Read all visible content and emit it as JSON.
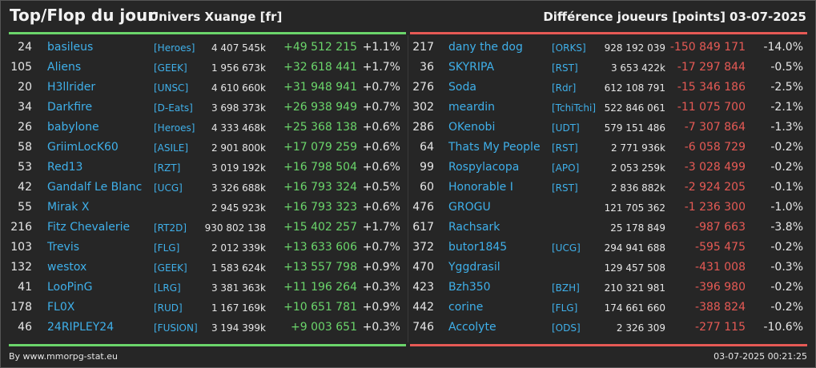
{
  "header": {
    "title": "Top/Flop du jour",
    "universe": "Univers Xuange [fr]",
    "metric": "Différence joueurs [points]",
    "date": "03-07-2025"
  },
  "top": [
    {
      "rank": "24",
      "name": "basileus",
      "alliance": "[Heroes]",
      "points": "4 407 545k",
      "diff": "+49 512 215",
      "pct": "+1.1%"
    },
    {
      "rank": "105",
      "name": "Aliens",
      "alliance": "[GEEK]",
      "points": "1 956 673k",
      "diff": "+32 618 441",
      "pct": "+1.7%"
    },
    {
      "rank": "20",
      "name": "H3llrider",
      "alliance": "[UNSC]",
      "points": "4 610 660k",
      "diff": "+31 948 941",
      "pct": "+0.7%"
    },
    {
      "rank": "34",
      "name": "Darkfire",
      "alliance": "[D-Eats]",
      "points": "3 698 373k",
      "diff": "+26 938 949",
      "pct": "+0.7%"
    },
    {
      "rank": "26",
      "name": "babylone",
      "alliance": "[Heroes]",
      "points": "4 333 468k",
      "diff": "+25 368 138",
      "pct": "+0.6%"
    },
    {
      "rank": "58",
      "name": "GriimLocK60",
      "alliance": "[ASILE]",
      "points": "2 901 800k",
      "diff": "+17 079 259",
      "pct": "+0.6%"
    },
    {
      "rank": "53",
      "name": "Red13",
      "alliance": "[RZT]",
      "points": "3 019 192k",
      "diff": "+16 798 504",
      "pct": "+0.6%"
    },
    {
      "rank": "42",
      "name": "Gandalf Le Blanc",
      "alliance": "[UCG]",
      "points": "3 326 688k",
      "diff": "+16 793 324",
      "pct": "+0.5%"
    },
    {
      "rank": "55",
      "name": "Mirak X",
      "alliance": "",
      "points": "2 945 923k",
      "diff": "+16 793 323",
      "pct": "+0.6%"
    },
    {
      "rank": "216",
      "name": "Fitz Chevalerie",
      "alliance": "[RT2D]",
      "points": "930 802 138",
      "diff": "+15 402 257",
      "pct": "+1.7%"
    },
    {
      "rank": "103",
      "name": "Trevis",
      "alliance": "[FLG]",
      "points": "2 012 339k",
      "diff": "+13 633 606",
      "pct": "+0.7%"
    },
    {
      "rank": "132",
      "name": "westox",
      "alliance": "[GEEK]",
      "points": "1 583 624k",
      "diff": "+13 557 798",
      "pct": "+0.9%"
    },
    {
      "rank": "41",
      "name": "LooPinG",
      "alliance": "[LRG]",
      "points": "3 381 363k",
      "diff": "+11 196 264",
      "pct": "+0.3%"
    },
    {
      "rank": "178",
      "name": "FL0X",
      "alliance": "[RUD]",
      "points": "1 167 169k",
      "diff": "+10 651 781",
      "pct": "+0.9%"
    },
    {
      "rank": "46",
      "name": "24RIPLEY24",
      "alliance": "[FUSION]",
      "points": "3 194 399k",
      "diff": "+9 003 651",
      "pct": "+0.3%"
    }
  ],
  "flop": [
    {
      "rank": "217",
      "name": "dany the dog",
      "alliance": "[ORKS]",
      "points": "928 192 039",
      "diff": "-150 849 171",
      "pct": "-14.0%"
    },
    {
      "rank": "36",
      "name": "SKYRIPA",
      "alliance": "[RST]",
      "points": "3 653 422k",
      "diff": "-17 297 844",
      "pct": "-0.5%"
    },
    {
      "rank": "276",
      "name": "Soda",
      "alliance": "[Rdr]",
      "points": "612 108 791",
      "diff": "-15 346 186",
      "pct": "-2.5%"
    },
    {
      "rank": "302",
      "name": "meardin",
      "alliance": "[TchiTchi]",
      "points": "522 846 061",
      "diff": "-11 075 700",
      "pct": "-2.1%"
    },
    {
      "rank": "286",
      "name": "OKenobi",
      "alliance": "[UDT]",
      "points": "579 151 486",
      "diff": "-7 307 864",
      "pct": "-1.3%"
    },
    {
      "rank": "64",
      "name": "Thats My People",
      "alliance": "[RST]",
      "points": "2 771 936k",
      "diff": "-6 058 729",
      "pct": "-0.2%"
    },
    {
      "rank": "99",
      "name": "Rospylacopa",
      "alliance": "[APO]",
      "points": "2 053 259k",
      "diff": "-3 028 499",
      "pct": "-0.2%"
    },
    {
      "rank": "60",
      "name": "Honorable I",
      "alliance": "[RST]",
      "points": "2 836 882k",
      "diff": "-2 924 205",
      "pct": "-0.1%"
    },
    {
      "rank": "476",
      "name": "GROGU",
      "alliance": "",
      "points": "121 705 362",
      "diff": "-1 236 300",
      "pct": "-1.0%"
    },
    {
      "rank": "617",
      "name": "Rachsark",
      "alliance": "",
      "points": "25 178 849",
      "diff": "-987 663",
      "pct": "-3.8%"
    },
    {
      "rank": "372",
      "name": "butor1845",
      "alliance": "[UCG]",
      "points": "294 941 688",
      "diff": "-595 475",
      "pct": "-0.2%"
    },
    {
      "rank": "470",
      "name": "Yggdrasil",
      "alliance": "",
      "points": "129 457 508",
      "diff": "-431 008",
      "pct": "-0.3%"
    },
    {
      "rank": "423",
      "name": "Bzh350",
      "alliance": "[BZH]",
      "points": "210 321 981",
      "diff": "-396 980",
      "pct": "-0.2%"
    },
    {
      "rank": "442",
      "name": "corine",
      "alliance": "[FLG]",
      "points": "174 661 660",
      "diff": "-388 824",
      "pct": "-0.2%"
    },
    {
      "rank": "746",
      "name": "Accolyte",
      "alliance": "[ODS]",
      "points": "2 326 309",
      "diff": "-277 115",
      "pct": "-10.6%"
    }
  ],
  "footer": {
    "source": "By www.mmorpg-stat.eu",
    "timestamp": "03-07-2025 00:21:25"
  },
  "colors": {
    "positive": "#6bd56b",
    "negative": "#e65a55",
    "link": "#3fb0ea"
  }
}
